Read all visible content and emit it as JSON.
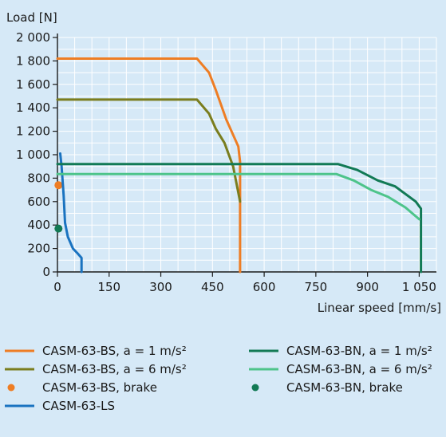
{
  "chart_data": {
    "type": "line",
    "ylabel": "Load [N]",
    "xlabel": "Linear speed [mm/s]",
    "xlim": [
      0,
      1100
    ],
    "ylim": [
      0,
      2000
    ],
    "xticks": [
      0,
      150,
      300,
      450,
      600,
      750,
      900,
      1050
    ],
    "xtick_labels": [
      "0",
      "150",
      "300",
      "450",
      "600",
      "750",
      "900",
      "1 050"
    ],
    "yticks": [
      0,
      200,
      400,
      600,
      800,
      1000,
      1200,
      1400,
      1600,
      1800,
      2000
    ],
    "ytick_labels": [
      "0",
      "200",
      "400",
      "600",
      "800",
      "1 000",
      "1 200",
      "1 400",
      "1 600",
      "1 800",
      "2 000"
    ],
    "grid": true,
    "legend_position": "bottom",
    "series": [
      {
        "name": "CASM-63-BS, a = 1 m/s²",
        "color": "#ee7d24",
        "kind": "line",
        "x": [
          0,
          405,
          440,
          460,
          490,
          525,
          530,
          530
        ],
        "y": [
          1820,
          1820,
          1700,
          1550,
          1300,
          1070,
          940,
          0
        ]
      },
      {
        "name": "CASM-63-BS, a = 6 m/s²",
        "color": "#7a7d1e",
        "kind": "line",
        "x": [
          0,
          405,
          440,
          460,
          485,
          510,
          530
        ],
        "y": [
          1470,
          1470,
          1350,
          1220,
          1100,
          900,
          600
        ]
      },
      {
        "name": "CASM-63-BS, brake",
        "color": "#ee7d24",
        "kind": "point",
        "x": [
          3
        ],
        "y": [
          740
        ]
      },
      {
        "name": "CASM-63-LS",
        "color": "#1a73c0",
        "kind": "line",
        "x": [
          8,
          12,
          18,
          22,
          30,
          45,
          58,
          70,
          70
        ],
        "y": [
          1010,
          900,
          650,
          420,
          300,
          200,
          160,
          120,
          0
        ]
      },
      {
        "name": "CASM-63-BN, a = 1 m/s²",
        "color": "#127a55",
        "kind": "line",
        "x": [
          0,
          815,
          870,
          930,
          980,
          1040,
          1055,
          1055
        ],
        "y": [
          920,
          920,
          870,
          780,
          730,
          600,
          540,
          0
        ]
      },
      {
        "name": "CASM-63-BN, a = 6 m/s²",
        "color": "#4dc48a",
        "kind": "line",
        "x": [
          0,
          810,
          860,
          910,
          960,
          1010,
          1050
        ],
        "y": [
          835,
          835,
          780,
          700,
          640,
          550,
          450
        ]
      },
      {
        "name": "CASM-63-BN, brake",
        "color": "#127a55",
        "kind": "point",
        "x": [
          3
        ],
        "y": [
          370
        ]
      }
    ]
  }
}
